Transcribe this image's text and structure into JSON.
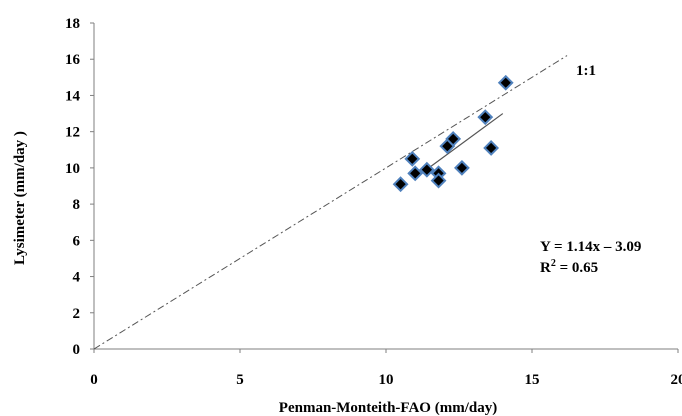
{
  "chart_data": {
    "type": "scatter",
    "xlabel": "Penman-Monteith-FAO (mm/day)",
    "ylabel": "Lysimeter  (mm/day )",
    "xlim": [
      0,
      20
    ],
    "ylim": [
      0,
      18
    ],
    "x_ticks": [
      "0",
      "5",
      "10",
      "15",
      "20"
    ],
    "y_ticks": [
      "0",
      "2",
      "4",
      "6",
      "8",
      "10",
      "12",
      "14",
      "16",
      "18"
    ],
    "grid": false,
    "points": [
      {
        "x": 10.5,
        "y": 9.1
      },
      {
        "x": 10.9,
        "y": 10.5
      },
      {
        "x": 11.0,
        "y": 9.7
      },
      {
        "x": 11.4,
        "y": 9.9
      },
      {
        "x": 11.8,
        "y": 9.7
      },
      {
        "x": 11.8,
        "y": 9.3
      },
      {
        "x": 12.1,
        "y": 11.2
      },
      {
        "x": 12.3,
        "y": 11.6
      },
      {
        "x": 12.6,
        "y": 10.0
      },
      {
        "x": 13.4,
        "y": 12.8
      },
      {
        "x": 13.6,
        "y": 11.1
      },
      {
        "x": 14.1,
        "y": 14.7
      }
    ],
    "one_to_one_line": {
      "label": "1:1",
      "x": [
        0,
        16.2
      ],
      "y": [
        0,
        16.2
      ]
    },
    "regression": {
      "equation": "Y = 1.14x – 3.09",
      "r2_label": "R",
      "r2_sup": "2",
      "r2_value": " = 0.65",
      "x": [
        11.0,
        14.0
      ],
      "y": [
        9.45,
        13.0
      ]
    },
    "colors": {
      "marker_fill": "#000000",
      "marker_edge": "#4f81bd",
      "line": "#555555",
      "axis": "#7f7f7f"
    }
  }
}
